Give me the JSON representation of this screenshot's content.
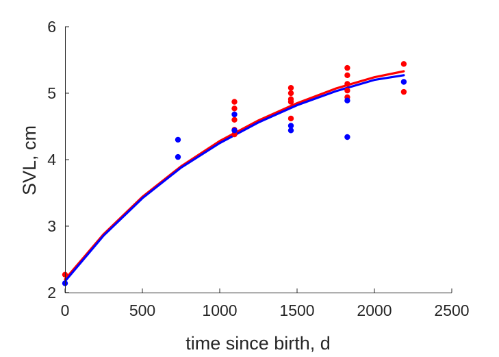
{
  "chart_data": {
    "type": "scatter",
    "title": "",
    "xlabel": "time since birth, d",
    "ylabel": "SVL, cm",
    "xlim": [
      0,
      2500
    ],
    "ylim": [
      2,
      6
    ],
    "xticks": [
      0,
      500,
      1000,
      1500,
      2000,
      2500
    ],
    "yticks": [
      2,
      3,
      4,
      5,
      6
    ],
    "grid": false,
    "legend": "none",
    "series": [
      {
        "kind": "points",
        "color": "#ff0000",
        "points": [
          [
            0,
            2.27
          ],
          [
            1095,
            4.87
          ],
          [
            1095,
            4.77
          ],
          [
            1095,
            4.6
          ],
          [
            1095,
            4.45
          ],
          [
            1095,
            4.38
          ],
          [
            1460,
            5.08
          ],
          [
            1460,
            5.0
          ],
          [
            1460,
            4.91
          ],
          [
            1460,
            4.87
          ],
          [
            1460,
            4.62
          ],
          [
            1825,
            5.38
          ],
          [
            1825,
            5.27
          ],
          [
            1825,
            5.14
          ],
          [
            1825,
            5.04
          ],
          [
            1825,
            4.94
          ],
          [
            2190,
            5.44
          ],
          [
            2190,
            5.02
          ]
        ]
      },
      {
        "kind": "points",
        "color": "#0000ff",
        "points": [
          [
            0,
            2.14
          ],
          [
            730,
            4.3
          ],
          [
            730,
            4.04
          ],
          [
            1095,
            4.68
          ],
          [
            1095,
            4.44
          ],
          [
            1460,
            4.51
          ],
          [
            1460,
            4.44
          ],
          [
            1825,
            4.89
          ],
          [
            1825,
            4.34
          ],
          [
            2190,
            5.17
          ]
        ]
      },
      {
        "kind": "curve",
        "color": "#ff0000",
        "x": [
          0,
          250,
          500,
          750,
          1000,
          1250,
          1500,
          1750,
          2000,
          2190
        ],
        "y": [
          2.2,
          2.88,
          3.44,
          3.9,
          4.28,
          4.59,
          4.85,
          5.07,
          5.24,
          5.33
        ]
      },
      {
        "kind": "curve",
        "color": "#0000ff",
        "x": [
          0,
          250,
          500,
          750,
          1000,
          1250,
          1500,
          1750,
          2000,
          2190
        ],
        "y": [
          2.17,
          2.86,
          3.42,
          3.88,
          4.25,
          4.56,
          4.82,
          5.03,
          5.2,
          5.27
        ]
      }
    ]
  }
}
